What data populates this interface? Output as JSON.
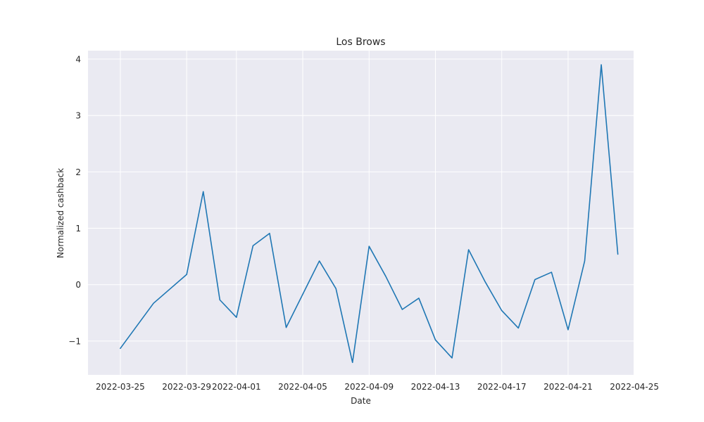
{
  "chart_data": {
    "type": "line",
    "title": "Los Brows",
    "xlabel": "Date",
    "ylabel": "Normalized cashback",
    "xlim": [
      "2022-03-23",
      "2022-04-25"
    ],
    "ylim": [
      -1.6,
      4.15
    ],
    "x_ticks": [
      "2022-03-25",
      "2022-03-29",
      "2022-04-01",
      "2022-04-05",
      "2022-04-09",
      "2022-04-13",
      "2022-04-17",
      "2022-04-21",
      "2022-04-25"
    ],
    "y_ticks": [
      -1,
      0,
      1,
      2,
      3,
      4
    ],
    "y_tick_labels": [
      "−1",
      "0",
      "1",
      "2",
      "3",
      "4"
    ],
    "grid": true,
    "series": [
      {
        "color": "#1f77b4",
        "x": [
          "2022-03-25",
          "2022-03-27",
          "2022-03-29",
          "2022-03-30",
          "2022-03-31",
          "2022-04-01",
          "2022-04-02",
          "2022-04-03",
          "2022-04-04",
          "2022-04-06",
          "2022-04-07",
          "2022-04-08",
          "2022-04-09",
          "2022-04-10",
          "2022-04-11",
          "2022-04-12",
          "2022-04-13",
          "2022-04-14",
          "2022-04-15",
          "2022-04-16",
          "2022-04-17",
          "2022-04-18",
          "2022-04-19",
          "2022-04-20",
          "2022-04-21",
          "2022-04-22",
          "2022-04-23",
          "2022-04-24"
        ],
        "y": [
          -1.13,
          -0.33,
          0.18,
          1.65,
          -0.27,
          -0.58,
          0.69,
          0.91,
          -0.76,
          0.42,
          -0.07,
          -1.38,
          0.68,
          0.15,
          -0.44,
          -0.24,
          -0.98,
          -1.3,
          0.62,
          0.05,
          -0.46,
          -0.77,
          0.09,
          0.22,
          -0.8,
          0.42,
          3.9,
          0.54
        ]
      }
    ]
  },
  "colors": {
    "plot_background": "#eaeaf2",
    "grid": "#ffffff",
    "line": "#1f77b4"
  }
}
